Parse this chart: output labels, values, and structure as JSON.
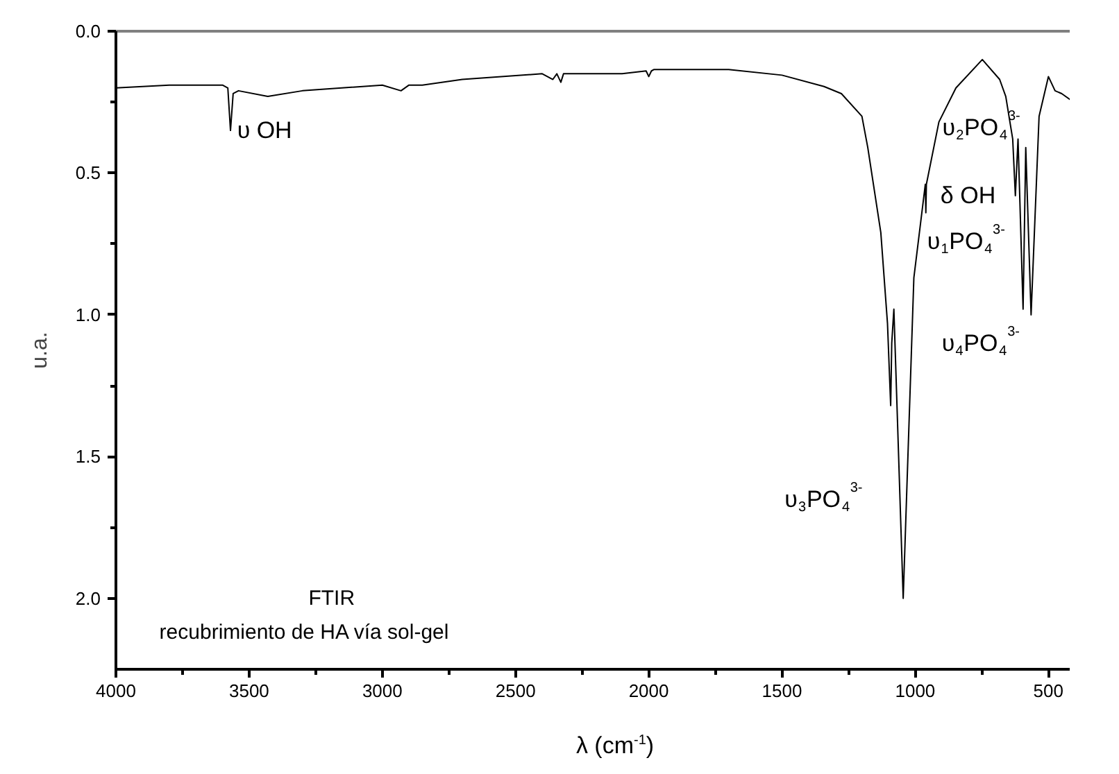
{
  "chart_data": {
    "type": "line",
    "xlabel": "λ (cm$^{-1}$)",
    "ylabel": "u.a.",
    "xlim": [
      4000,
      420
    ],
    "ylim": [
      2.25,
      0
    ],
    "xticks": [
      4000,
      {
        "value": 3750,
        "label": null
      },
      3500,
      {
        "value": 3250,
        "label": null
      },
      3000,
      {
        "value": 2750,
        "label": null
      },
      2500,
      {
        "value": 2250,
        "label": null
      },
      2000,
      {
        "value": 1750,
        "label": null
      },
      1500,
      {
        "value": 1250,
        "label": null
      },
      1000,
      {
        "value": 750,
        "label": null
      },
      500
    ],
    "yticks": [
      {
        "value": 0,
        "label": "0.0"
      },
      {
        "value": 0.25,
        "label": null
      },
      0.5,
      {
        "value": 0.75,
        "label": null
      },
      {
        "value": 1,
        "label": "1.0"
      },
      {
        "value": 1.25,
        "label": null
      },
      1.5,
      {
        "value": 1.75,
        "label": null
      },
      {
        "value": 2,
        "label": "2.0"
      }
    ],
    "grid": false,
    "marker": "none",
    "line_style": "solid",
    "series": [
      {
        "color": "#000000",
        "x": [
          4000,
          3800,
          3600,
          3580,
          3570,
          3560,
          3540,
          3430,
          3300,
          3000,
          2930,
          2900,
          2850,
          2700,
          2400,
          2360,
          2345,
          2330,
          2320,
          2100,
          2010,
          2000,
          1990,
          1980,
          1700,
          1500,
          1342,
          1277,
          1200,
          1178,
          1129,
          1104,
          1092,
          1088,
          1080,
          1045,
          1005,
          962,
          960,
          958,
          911,
          847,
          748,
          683,
          660,
          634,
          624,
          614,
          595,
          585,
          565,
          535,
          500,
          475,
          450,
          420
        ],
        "values": [
          0.2,
          0.19,
          0.19,
          0.2,
          0.35,
          0.22,
          0.21,
          0.23,
          0.21,
          0.19,
          0.21,
          0.19,
          0.19,
          0.17,
          0.15,
          0.17,
          0.15,
          0.18,
          0.15,
          0.15,
          0.14,
          0.16,
          0.14,
          0.135,
          0.135,
          0.155,
          0.195,
          0.22,
          0.3,
          0.41,
          0.71,
          1.03,
          1.32,
          1.1,
          0.98,
          2.0,
          0.87,
          0.54,
          0.64,
          0.54,
          0.32,
          0.2,
          0.1,
          0.17,
          0.23,
          0.38,
          0.58,
          0.38,
          0.98,
          0.41,
          1.0,
          0.3,
          0.16,
          0.21,
          0.22,
          0.24
        ]
      }
    ],
    "annotations": [
      "υ OH",
      "δ OH",
      "υ$_{1}$PO$_{4}$$^{3-}$",
      "υ$_{2}$PO$_{4}$$^{3-}$",
      "υ$_{4}$PO$_{4}$$^{3-}$",
      "υ$_{3}$PO$_{4}$$^{3-}$",
      "FTIR",
      "recubrimiento de HA vía sol-gel"
    ]
  }
}
